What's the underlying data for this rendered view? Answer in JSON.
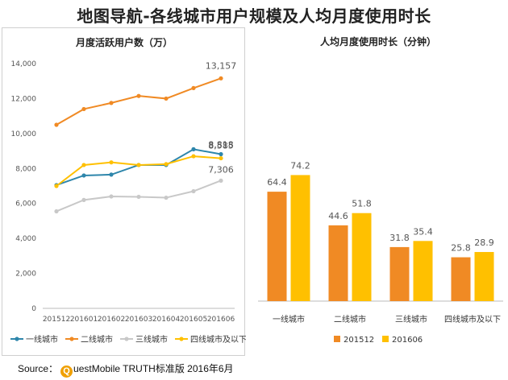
{
  "page": {
    "title": "地图导航-各线城市用户规模及人均月度使用时长"
  },
  "source": {
    "label": "Source：",
    "q_letter": "Q",
    "brand": "uestMobile TRUTH标准版 2016年6月"
  },
  "chart_data": [
    {
      "type": "line",
      "title": "月度活跃用户数（万）",
      "x": [
        "201512",
        "201601",
        "201602",
        "201603",
        "201604",
        "201605",
        "201606"
      ],
      "ylim": [
        0,
        14000
      ],
      "yticks": [
        "0",
        "2,000",
        "4,000",
        "6,000",
        "8,000",
        "10,000",
        "12,000",
        "14,000"
      ],
      "ytick_values": [
        0,
        2000,
        4000,
        6000,
        8000,
        10000,
        12000,
        14000
      ],
      "grid": false,
      "legend": "bottom",
      "series": [
        {
          "name": "一线城市",
          "color": "#2e86ab",
          "values": [
            7050,
            7600,
            7650,
            8200,
            8200,
            9100,
            8818
          ],
          "end_label": "8,818"
        },
        {
          "name": "二线城市",
          "color": "#f08a24",
          "values": [
            10500,
            11400,
            11750,
            12150,
            12000,
            12600,
            13157
          ],
          "end_label": "13,157"
        },
        {
          "name": "三线城市",
          "color": "#c8c8c8",
          "values": [
            5550,
            6200,
            6400,
            6380,
            6330,
            6700,
            7306
          ],
          "end_label": "7,306"
        },
        {
          "name": "四线城市及以下",
          "color": "#ffc000",
          "values": [
            7000,
            8200,
            8350,
            8200,
            8250,
            8700,
            8585
          ],
          "end_label": "8,585"
        }
      ]
    },
    {
      "type": "bar",
      "title": "人均月度使用时长（分钟）",
      "categories": [
        "一线城市",
        "二线城市",
        "三线城市",
        "四线城市及以下"
      ],
      "ylim": [
        0,
        80
      ],
      "legend": "bottom",
      "series": [
        {
          "name": "201512",
          "color": "#f08a24",
          "values": [
            64.4,
            44.6,
            31.8,
            25.8
          ]
        },
        {
          "name": "201606",
          "color": "#ffc000",
          "values": [
            74.2,
            51.8,
            35.4,
            28.9
          ]
        }
      ]
    }
  ]
}
